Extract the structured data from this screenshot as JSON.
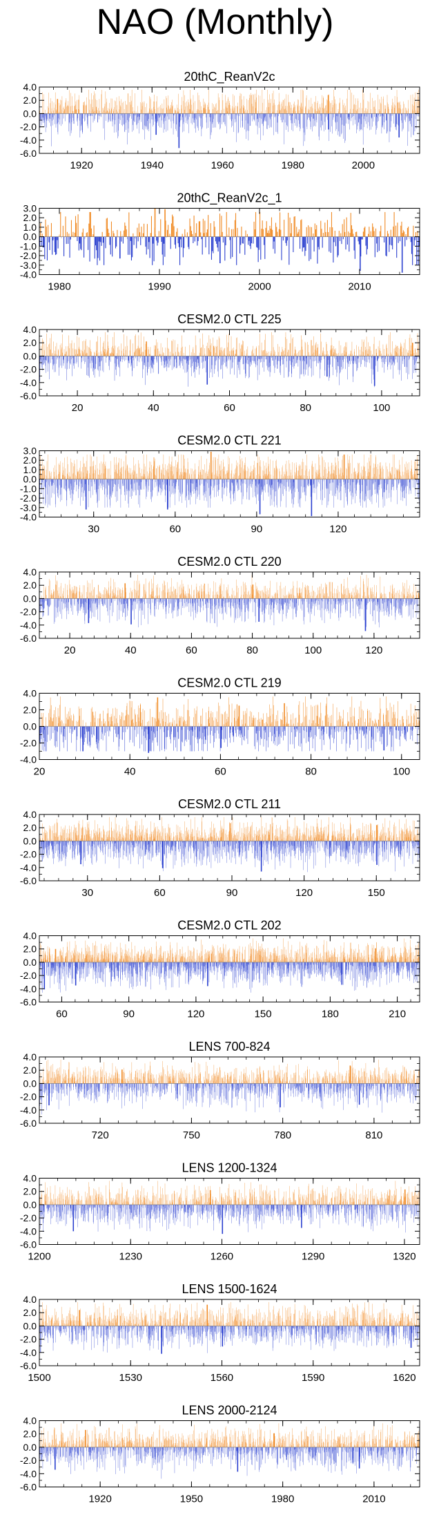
{
  "page": {
    "title": "NAO (Monthly)"
  },
  "colors": {
    "positive": "#f08a24",
    "negative": "#2a3fcf",
    "frame": "#000000"
  },
  "chart_data": [
    {
      "type": "bar",
      "title": "20thC_ReanV2c",
      "ylim": [
        -6,
        4
      ],
      "yticks": [
        "4.0",
        "2.0",
        "0.0",
        "-2.0",
        "-4.0",
        "-6.0"
      ],
      "yvals": [
        4,
        2,
        0,
        -2,
        -4,
        -6
      ],
      "xlim": [
        1908,
        2016
      ],
      "xticks": [
        1920,
        1940,
        1960,
        1980,
        2000
      ],
      "xtick_labels": [
        "1920",
        "1940",
        "1960",
        "1980",
        "2000"
      ],
      "n_months": 1296,
      "seed": 11,
      "amp_pos": 1.6,
      "amp_neg": 1.8,
      "spikes_neg": [
        [
          1947.5,
          -5.2
        ],
        [
          1941.0,
          -3.2
        ],
        [
          2010.0,
          -3.6
        ],
        [
          1990.0,
          -2.4
        ]
      ],
      "spikes_pos": [
        [
          1989.9,
          2.8
        ],
        [
          1913.0,
          2.2
        ]
      ]
    },
    {
      "type": "bar",
      "title": "20thC_ReanV2c_1",
      "ylim": [
        -4,
        3
      ],
      "yticks": [
        "3.0",
        "2.0",
        "1.0",
        "0.0",
        "-1.0",
        "-2.0",
        "-3.0",
        "-4.0"
      ],
      "yvals": [
        3,
        2,
        1,
        0,
        -1,
        -2,
        -3,
        -4
      ],
      "xlim": [
        1978,
        2016
      ],
      "xticks": [
        1980,
        1990,
        2000,
        2010
      ],
      "xtick_labels": [
        "1980",
        "1990",
        "2000",
        "2010"
      ],
      "n_months": 456,
      "seed": 23,
      "amp_pos": 1.3,
      "amp_neg": 1.5,
      "spikes_neg": [
        [
          2010.0,
          -3.6
        ],
        [
          1996.0,
          -2.8
        ],
        [
          2014.2,
          -3.8
        ],
        [
          1986.0,
          -2.3
        ]
      ],
      "spikes_pos": [
        [
          1989.5,
          3.0
        ],
        [
          1983.0,
          2.6
        ],
        [
          1990.5,
          2.9
        ]
      ]
    },
    {
      "type": "bar",
      "title": "CESM2.0 CTL 225",
      "ylim": [
        -6,
        4
      ],
      "yticks": [
        "4.0",
        "2.0",
        "0.0",
        "-2.0",
        "-4.0",
        "-6.0"
      ],
      "yvals": [
        4,
        2,
        0,
        -2,
        -4,
        -6
      ],
      "xlim": [
        10,
        110
      ],
      "xticks": [
        20,
        40,
        60,
        80,
        100
      ],
      "xtick_labels": [
        "20",
        "40",
        "60",
        "80",
        "100"
      ],
      "n_months": 1200,
      "seed": 37,
      "amp_pos": 1.5,
      "amp_neg": 1.7,
      "spikes_neg": [
        [
          54.0,
          -4.3
        ],
        [
          98.0,
          -4.5
        ],
        [
          85.5,
          -3.1
        ]
      ],
      "spikes_pos": [
        [
          108.0,
          2.0
        ],
        [
          38.0,
          2.2
        ]
      ]
    },
    {
      "type": "bar",
      "title": "CESM2.0 CTL 221",
      "ylim": [
        -4,
        3
      ],
      "yticks": [
        "3.0",
        "2.0",
        "1.0",
        "0.0",
        "-1.0",
        "-2.0",
        "-3.0",
        "-4.0"
      ],
      "yvals": [
        3,
        2,
        1,
        0,
        -1,
        -2,
        -3,
        -4
      ],
      "xlim": [
        10,
        150
      ],
      "xticks": [
        30,
        60,
        90,
        120
      ],
      "xtick_labels": [
        "30",
        "60",
        "90",
        "120"
      ],
      "n_months": 1680,
      "seed": 41,
      "amp_pos": 1.2,
      "amp_neg": 1.4,
      "spikes_neg": [
        [
          91.0,
          -3.7
        ],
        [
          110.0,
          -3.9
        ],
        [
          57.0,
          -3.2
        ],
        [
          27.0,
          -3.2
        ]
      ],
      "spikes_pos": [
        [
          73.0,
          2.9
        ],
        [
          122.0,
          2.6
        ]
      ]
    },
    {
      "type": "bar",
      "title": "CESM2.0 CTL 220",
      "ylim": [
        -6,
        4
      ],
      "yticks": [
        "4.0",
        "2.0",
        "0.0",
        "-2.0",
        "-4.0",
        "-6.0"
      ],
      "yvals": [
        4,
        2,
        0,
        -2,
        -4,
        -6
      ],
      "xlim": [
        10,
        135
      ],
      "xticks": [
        20,
        40,
        60,
        80,
        100,
        120
      ],
      "xtick_labels": [
        "20",
        "40",
        "60",
        "80",
        "100",
        "120"
      ],
      "n_months": 1500,
      "seed": 53,
      "amp_pos": 1.4,
      "amp_neg": 1.6,
      "spikes_neg": [
        [
          117.0,
          -4.9
        ],
        [
          40.0,
          -3.9
        ],
        [
          26.0,
          -3.7
        ],
        [
          82.0,
          -3.5
        ]
      ],
      "spikes_pos": [
        [
          38.0,
          2.3
        ],
        [
          80.0,
          2.1
        ]
      ]
    },
    {
      "type": "bar",
      "title": "CESM2.0 CTL 219",
      "ylim": [
        -4,
        4
      ],
      "yticks": [
        "4.0",
        "2.0",
        "0.0",
        "-2.0",
        "-4.0"
      ],
      "yvals": [
        4,
        2,
        0,
        -2,
        -4
      ],
      "xlim": [
        20,
        104
      ],
      "xticks": [
        20,
        40,
        60,
        80,
        100
      ],
      "xtick_labels": [
        "20",
        "40",
        "60",
        "80",
        "100"
      ],
      "n_months": 1008,
      "seed": 67,
      "amp_pos": 1.5,
      "amp_neg": 1.6,
      "spikes_neg": [
        [
          29.5,
          -3.0
        ],
        [
          44.0,
          -3.2
        ],
        [
          96.0,
          -2.9
        ],
        [
          60.0,
          -2.6
        ]
      ],
      "spikes_pos": [
        [
          46.0,
          3.5
        ],
        [
          64.0,
          2.5
        ],
        [
          74.0,
          2.8
        ]
      ]
    },
    {
      "type": "bar",
      "title": "CESM2.0 CTL 211",
      "ylim": [
        -6,
        4
      ],
      "yticks": [
        "4.0",
        "2.0",
        "0.0",
        "-2.0",
        "-4.0",
        "-6.0"
      ],
      "yvals": [
        4,
        2,
        0,
        -2,
        -4,
        -6
      ],
      "xlim": [
        10,
        168
      ],
      "xticks": [
        30,
        60,
        90,
        120,
        150
      ],
      "xtick_labels": [
        "30",
        "60",
        "90",
        "120",
        "150"
      ],
      "n_months": 1896,
      "seed": 79,
      "amp_pos": 1.5,
      "amp_neg": 1.7,
      "spikes_neg": [
        [
          61.0,
          -4.1
        ],
        [
          102.0,
          -4.6
        ],
        [
          150.0,
          -3.6
        ],
        [
          27.0,
          -3.5
        ]
      ],
      "spikes_pos": [
        [
          89.0,
          2.7
        ],
        [
          150.0,
          2.4
        ]
      ]
    },
    {
      "type": "bar",
      "title": "CESM2.0 CTL 202",
      "ylim": [
        -6,
        4
      ],
      "yticks": [
        "4.0",
        "2.0",
        "0.0",
        "-2.0",
        "-4.0",
        "-6.0"
      ],
      "yvals": [
        4,
        2,
        0,
        -2,
        -4,
        -6
      ],
      "xlim": [
        50,
        220
      ],
      "xticks": [
        60,
        90,
        120,
        150,
        180,
        210
      ],
      "xtick_labels": [
        "60",
        "90",
        "120",
        "150",
        "180",
        "210"
      ],
      "n_months": 2040,
      "seed": 83,
      "amp_pos": 1.4,
      "amp_neg": 1.7,
      "spikes_neg": [
        [
          52.0,
          -4.1
        ],
        [
          66.0,
          -3.5
        ],
        [
          125.0,
          -3.6
        ],
        [
          185.0,
          -3.4
        ]
      ],
      "spikes_pos": [
        [
          57.0,
          2.0
        ],
        [
          200.0,
          2.1
        ]
      ]
    },
    {
      "type": "bar",
      "title": "LENS 700-824",
      "ylim": [
        -6,
        4
      ],
      "yticks": [
        "4.0",
        "2.0",
        "0.0",
        "-2.0",
        "-4.0",
        "-6.0"
      ],
      "yvals": [
        4,
        2,
        0,
        -2,
        -4,
        -6
      ],
      "xlim": [
        700,
        825
      ],
      "xticks": [
        720,
        750,
        780,
        810
      ],
      "xtick_labels": [
        "720",
        "750",
        "780",
        "810"
      ],
      "n_months": 1500,
      "seed": 97,
      "amp_pos": 1.4,
      "amp_neg": 1.6,
      "spikes_neg": [
        [
          779.0,
          -3.6
        ],
        [
          703.0,
          -3.3
        ],
        [
          805.0,
          -3.2
        ]
      ],
      "spikes_pos": [
        [
          802.0,
          2.7
        ],
        [
          727.0,
          2.1
        ]
      ]
    },
    {
      "type": "bar",
      "title": "LENS 1200-1324",
      "ylim": [
        -6,
        4
      ],
      "yticks": [
        "4.0",
        "2.0",
        "0.0",
        "-2.0",
        "-4.0",
        "-6.0"
      ],
      "yvals": [
        4,
        2,
        0,
        -2,
        -4,
        -6
      ],
      "xlim": [
        1200,
        1325
      ],
      "xticks": [
        1200,
        1230,
        1260,
        1290,
        1320
      ],
      "xtick_labels": [
        "1200",
        "1230",
        "1260",
        "1290",
        "1320"
      ],
      "n_months": 1500,
      "seed": 101,
      "amp_pos": 1.4,
      "amp_neg": 1.6,
      "spikes_neg": [
        [
          1260.0,
          -4.4
        ],
        [
          1211.0,
          -4.0
        ],
        [
          1286.0,
          -3.5
        ]
      ],
      "spikes_pos": [
        [
          1256.0,
          2.2
        ],
        [
          1320.0,
          2.3
        ]
      ]
    },
    {
      "type": "bar",
      "title": "LENS 1500-1624",
      "ylim": [
        -6,
        4
      ],
      "yticks": [
        "4.0",
        "2.0",
        "0.0",
        "-2.0",
        "-4.0",
        "-6.0"
      ],
      "yvals": [
        4,
        2,
        0,
        -2,
        -4,
        -6
      ],
      "xlim": [
        1500,
        1625
      ],
      "xticks": [
        1500,
        1530,
        1560,
        1590,
        1620
      ],
      "xtick_labels": [
        "1500",
        "1530",
        "1560",
        "1590",
        "1620"
      ],
      "n_months": 1500,
      "seed": 113,
      "amp_pos": 1.5,
      "amp_neg": 1.6,
      "spikes_neg": [
        [
          1540.0,
          -4.2
        ],
        [
          1622.0,
          -3.3
        ],
        [
          1560.0,
          -3.1
        ]
      ],
      "spikes_pos": [
        [
          1555.0,
          3.2
        ],
        [
          1513.0,
          2.4
        ]
      ]
    },
    {
      "type": "bar",
      "title": "LENS 2000-2124",
      "ylim": [
        -6,
        4
      ],
      "yticks": [
        "4.0",
        "2.0",
        "0.0",
        "-2.0",
        "-4.0",
        "-6.0"
      ],
      "yvals": [
        4,
        2,
        0,
        -2,
        -4,
        -6
      ],
      "xlim": [
        1900,
        2025
      ],
      "xticks": [
        1920,
        1950,
        1980,
        2010
      ],
      "xtick_labels": [
        "1920",
        "1950",
        "1980",
        "2010"
      ],
      "n_months": 1500,
      "seed": 127,
      "amp_pos": 1.4,
      "amp_neg": 1.6,
      "spikes_neg": [
        [
          1965.0,
          -3.7
        ],
        [
          1905.0,
          -3.4
        ],
        [
          2005.0,
          -3.2
        ]
      ],
      "spikes_pos": [
        [
          1915.0,
          2.6
        ],
        [
          1977.0,
          2.1
        ]
      ]
    }
  ]
}
